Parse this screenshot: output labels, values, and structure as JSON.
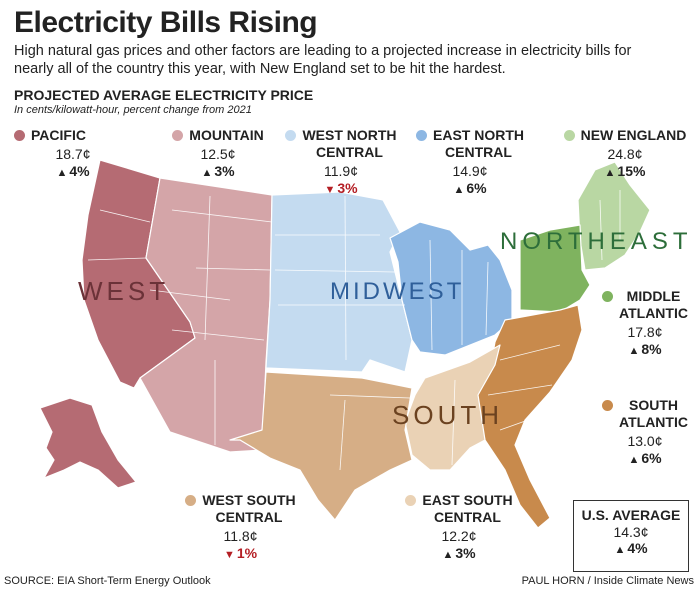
{
  "title": "Electricity Bills Rising",
  "subtitle": "High natural gas prices and other factors are leading to a projected increase in electricity bills for nearly all of the country this year, with New England set to be hit the hardest.",
  "section_title": "PROJECTED AVERAGE ELECTRICITY PRICE",
  "unit_note": "In cents/kilowatt-hour, percent change from 2021",
  "map_labels": {
    "west": "WEST",
    "midwest": "MIDWEST",
    "south": "SOUTH",
    "northeast": "NORTHEAST"
  },
  "regions": {
    "pacific": {
      "name": "PACIFIC",
      "price": "18.7¢",
      "change": "4%",
      "direction": "up",
      "color": "#b56b73"
    },
    "mountain": {
      "name": "MOUNTAIN",
      "price": "12.5¢",
      "change": "3%",
      "direction": "up",
      "color": "#d4a5a8"
    },
    "wnc": {
      "name1": "WEST NORTH",
      "name2": "CENTRAL",
      "price": "11.9¢",
      "change": "3%",
      "direction": "down",
      "color": "#c4dbf0"
    },
    "enc": {
      "name1": "EAST NORTH",
      "name2": "CENTRAL",
      "price": "14.9¢",
      "change": "6%",
      "direction": "up",
      "color": "#8db7e3"
    },
    "ne": {
      "name": "NEW ENGLAND",
      "price": "24.8¢",
      "change": "15%",
      "direction": "up",
      "color": "#b9d7a3"
    },
    "ma": {
      "name1": "MIDDLE",
      "name2": "ATLANTIC",
      "price": "17.8¢",
      "change": "8%",
      "direction": "up",
      "color": "#7fb35f"
    },
    "sa": {
      "name1": "SOUTH",
      "name2": "ATLANTIC",
      "price": "13.0¢",
      "change": "6%",
      "direction": "up",
      "color": "#c88a4c"
    },
    "wsc": {
      "name1": "WEST SOUTH",
      "name2": "CENTRAL",
      "price": "11.8¢",
      "change": "1%",
      "direction": "down",
      "color": "#d6ae86"
    },
    "esc": {
      "name1": "EAST SOUTH",
      "name2": "CENTRAL",
      "price": "12.2¢",
      "change": "3%",
      "direction": "up",
      "color": "#ead2b5"
    }
  },
  "us_average": {
    "label": "U.S. AVERAGE",
    "price": "14.3¢",
    "change": "4%",
    "direction": "up"
  },
  "source": "SOURCE: EIA Short-Term Energy Outlook",
  "credit": "PAUL HORN / Inside Climate News",
  "colors": {
    "arrow_up": "#222222",
    "arrow_down": "#b41e24",
    "label_gray": "#7a7a7a"
  }
}
